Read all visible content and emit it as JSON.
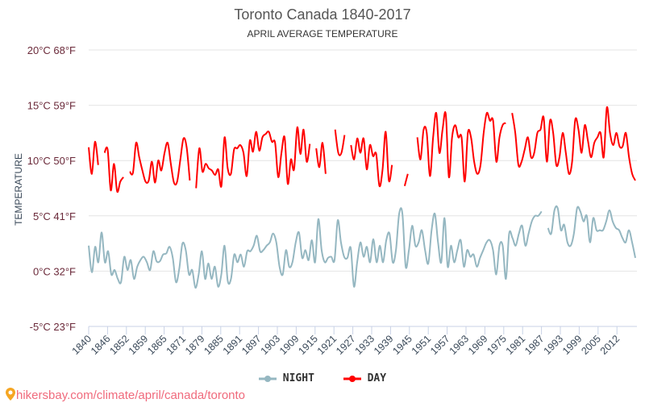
{
  "chart_data": {
    "type": "line",
    "title": "Toronto Canada 1840-2017",
    "subtitle": "APRIL AVERAGE TEMPERATURE",
    "ylabel": "TEMPERATURE",
    "xlabel": "",
    "x_range": [
      1840,
      2017
    ],
    "ylim": [
      -5,
      20
    ],
    "y_ticks": [
      {
        "value": 20,
        "label": "20°C 68°F"
      },
      {
        "value": 15,
        "label": "15°C 59°F"
      },
      {
        "value": 10,
        "label": "10°C 50°F"
      },
      {
        "value": 5,
        "label": "5°C 41°F"
      },
      {
        "value": 0,
        "label": "0°C 32°F"
      },
      {
        "value": -5,
        "label": "-5°C 23°F"
      }
    ],
    "x_tick_labels": [
      "1840",
      "1846",
      "1852",
      "1859",
      "1865",
      "1871",
      "1879",
      "1885",
      "1891",
      "1897",
      "1903",
      "1909",
      "1915",
      "1921",
      "1927",
      "1933",
      "1939",
      "1945",
      "1951",
      "1957",
      "1963",
      "1969",
      "1975",
      "1981",
      "1987",
      "1993",
      "1999",
      "2005",
      "2012"
    ],
    "grid": true,
    "legend_position": "bottom",
    "series": [
      {
        "name": "NIGHT",
        "color": "#95b7c1",
        "values": [
          2.3,
          -0.1,
          2.2,
          0.8,
          3.5,
          0.8,
          1.8,
          -0.3,
          0.1,
          -0.7,
          -1,
          1.3,
          0.1,
          1,
          -0.7,
          0.4,
          1,
          1.3,
          0.8,
          0.1,
          1.8,
          0.9,
          0.9,
          1.5,
          1.6,
          2.2,
          1.2,
          -1,
          0.2,
          2.5,
          1.9,
          -0.3,
          0.1,
          -1.5,
          -0.3,
          1.8,
          -0.7,
          0.7,
          -0.7,
          0.4,
          -1.4,
          -0.3,
          2.3,
          -0.9,
          -0.7,
          1.5,
          0.8,
          1.5,
          0.4,
          1.8,
          1.8,
          2.3,
          3.2,
          1.8,
          1.9,
          2.3,
          2.6,
          3.4,
          2.6,
          0.4,
          -0.3,
          1.9,
          0.4,
          0.8,
          2.6,
          3.5,
          1.2,
          1.9,
          1,
          2.8,
          0.8,
          4.7,
          1.9,
          0.8,
          1.2,
          1.3,
          1,
          4.6,
          2.6,
          1.3,
          1.2,
          2.1,
          -1.4,
          0.8,
          2.6,
          1.3,
          2.2,
          0.8,
          2.9,
          0.8,
          2.3,
          0.8,
          2.8,
          3.4,
          0.8,
          1.9,
          5.2,
          5.2,
          0.4,
          1.9,
          4.1,
          2.3,
          2.6,
          3.7,
          1.9,
          0.7,
          3.7,
          5.2,
          2.6,
          0.8,
          4.8,
          0.4,
          2.3,
          0.8,
          1.9,
          2.8,
          0.4,
          1.9,
          1.3,
          1.5,
          0.4,
          1.2,
          1.9,
          2.6,
          2.8,
          1.9,
          -0.3,
          2.3,
          2.3,
          -0.7,
          3.4,
          3,
          2.3,
          3.4,
          4.1,
          2.3,
          3.4,
          4.5,
          5,
          5,
          5.4,
          null,
          3.9,
          3.4,
          5.5,
          5.7,
          3.7,
          4.2,
          2.6,
          2.3,
          3.4,
          5.7,
          5.4,
          4.5,
          5,
          2.6,
          4.8,
          3.7,
          3.7,
          3.7,
          4.5,
          5.5,
          4.5,
          3.9,
          3.7,
          3,
          2.6,
          3.7,
          2.6,
          1.2
        ]
      },
      {
        "name": "DAY",
        "color": "#ff0000",
        "values": [
          11.2,
          8.8,
          11.7,
          9.6,
          null,
          10.7,
          11,
          7.3,
          9.7,
          7.2,
          8.1,
          8.5,
          null,
          9,
          8.9,
          11.6,
          10.3,
          9.1,
          8.1,
          8.2,
          9.9,
          8,
          10,
          9.1,
          10.7,
          11.6,
          9.7,
          8,
          8.1,
          10.1,
          12,
          11.2,
          8.2,
          null,
          7.5,
          11.1,
          9,
          9.7,
          9.3,
          9.1,
          8.7,
          9.2,
          7.7,
          12.1,
          9.3,
          8.8,
          11,
          11.1,
          11.4,
          10.7,
          8.6,
          11.8,
          10.8,
          12.6,
          10.9,
          12.1,
          12.4,
          12.6,
          11.7,
          11.6,
          8.5,
          10.7,
          12.1,
          7.9,
          10.1,
          9.2,
          13,
          10.6,
          12.8,
          9.9,
          11.5,
          null,
          11.1,
          9.4,
          11.6,
          8.8,
          null,
          null,
          12.8,
          10.7,
          10.7,
          12.3,
          null,
          11.4,
          10.1,
          12,
          10.7,
          12,
          9.2,
          11.4,
          10.4,
          10.6,
          7.7,
          9.2,
          12.6,
          8.2,
          9.6,
          null,
          null,
          null,
          7.7,
          8.8,
          null,
          null,
          12.1,
          10.1,
          12.8,
          12.5,
          8.6,
          12.1,
          14.3,
          10.7,
          12.8,
          14.2,
          8.5,
          12.1,
          13.2,
          12.1,
          12.1,
          8.1,
          12.5,
          12.1,
          9.9,
          8.8,
          9.6,
          12.5,
          14.3,
          13.6,
          13.6,
          9.9,
          12.1,
          13.2,
          13.4,
          null,
          14.3,
          12.5,
          9.6,
          9.9,
          11,
          12.1,
          10.3,
          10.7,
          12.5,
          12.8,
          13.9,
          9.9,
          13.6,
          12.5,
          9.6,
          10.3,
          12.5,
          10.7,
          8.8,
          9.9,
          13.7,
          12.8,
          10.7,
          13.2,
          11.8,
          10.3,
          11.6,
          12.1,
          12.5,
          10.3,
          14.8,
          12.5,
          11.4,
          12.5,
          11.3,
          11.3,
          12.5,
          10.3,
          8.8,
          8.2
        ]
      }
    ]
  },
  "source": "hikersbay.com/climate/april/canada/toronto"
}
